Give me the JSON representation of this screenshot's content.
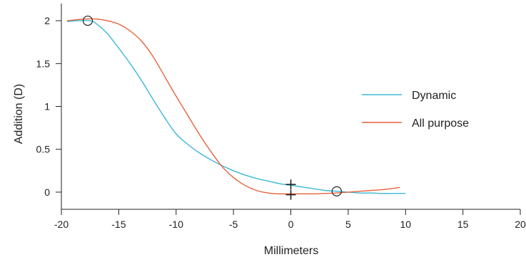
{
  "chart_data": {
    "type": "line",
    "title": "",
    "xlabel": "Millimeters",
    "ylabel": "Addition (D)",
    "xlim": [
      -20,
      20
    ],
    "ylim": [
      -0.2,
      2.2
    ],
    "xticks": [
      -20,
      -15,
      -10,
      -5,
      0,
      5,
      10,
      15,
      20
    ],
    "yticks": [
      0,
      0.5,
      1,
      1.5,
      2
    ],
    "xtick_labels": [
      "-20",
      "-15",
      "-10",
      "-5",
      "0",
      "5",
      "10",
      "15",
      "20"
    ],
    "ytick_labels": [
      "0",
      "0.5",
      "1",
      "1.5",
      "2"
    ],
    "grid": false,
    "legend_position": "right",
    "series": [
      {
        "name": "Dynamic",
        "color": "#3bb8d8",
        "x": [
          -19.5,
          -18.5,
          -17.5,
          -17,
          -16,
          -15,
          -14,
          -13,
          -12,
          -11,
          -10,
          -9,
          -8,
          -7,
          -6,
          -5,
          -4,
          -3,
          -2,
          -1,
          0,
          1,
          2,
          3,
          4,
          5,
          6,
          7,
          8,
          9,
          10
        ],
        "y": [
          1.99,
          2.0,
          2.0,
          1.97,
          1.85,
          1.68,
          1.5,
          1.3,
          1.08,
          0.87,
          0.68,
          0.56,
          0.46,
          0.38,
          0.31,
          0.25,
          0.2,
          0.16,
          0.13,
          0.1,
          0.08,
          0.06,
          0.04,
          0.02,
          0.01,
          0.0,
          -0.01,
          -0.01,
          -0.015,
          -0.015,
          -0.015
        ]
      },
      {
        "name": "All purpose",
        "color": "#e8623a",
        "x": [
          -19.5,
          -18,
          -17,
          -16,
          -15,
          -14,
          -13,
          -12,
          -11,
          -10,
          -9,
          -8,
          -7,
          -6,
          -5,
          -4,
          -3,
          -2,
          -1,
          0,
          1,
          2,
          3,
          4,
          5,
          6,
          7,
          8,
          9.5
        ],
        "y": [
          2.0,
          2.02,
          2.02,
          2.0,
          1.96,
          1.88,
          1.76,
          1.58,
          1.35,
          1.12,
          0.9,
          0.68,
          0.48,
          0.3,
          0.17,
          0.08,
          0.02,
          -0.01,
          -0.02,
          -0.02,
          -0.02,
          -0.02,
          -0.015,
          -0.01,
          0.0,
          0.01,
          0.02,
          0.03,
          0.055
        ]
      }
    ],
    "point_markers": [
      {
        "shape": "circle",
        "x": -17.7,
        "y": 2.0
      },
      {
        "shape": "circle",
        "x": 4,
        "y": 0.01
      },
      {
        "shape": "cross",
        "x": 0,
        "y": 0.09
      },
      {
        "shape": "cross",
        "x": 0,
        "y": -0.03
      }
    ]
  }
}
